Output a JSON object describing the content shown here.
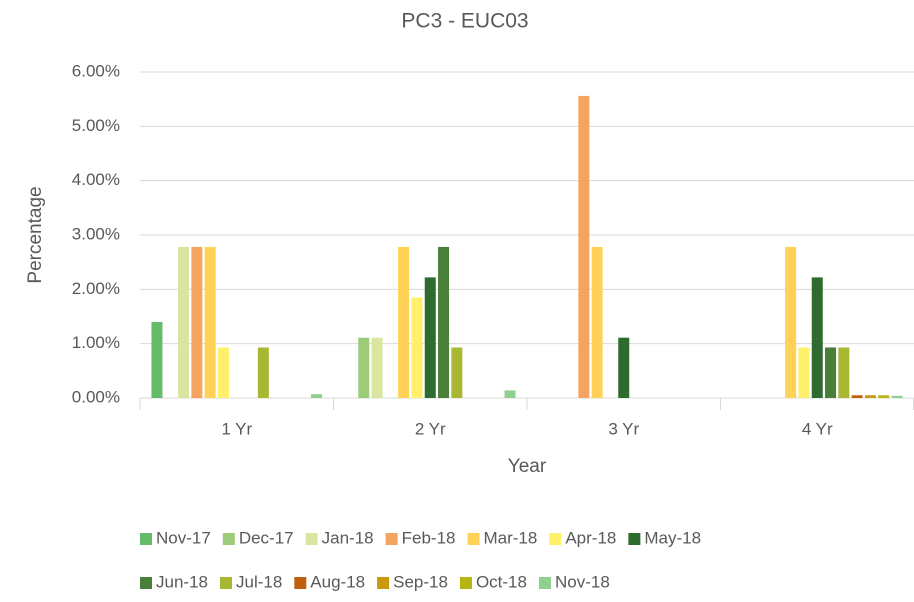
{
  "chart_data": {
    "type": "bar",
    "title": "PC3 - EUC03",
    "x_label": "Year",
    "y_label": "Percentage",
    "categories": [
      "1 Yr",
      "2 Yr",
      "3 Yr",
      "4 Yr"
    ],
    "ylim": [
      0,
      6
    ],
    "yticks": [
      {
        "value": 0,
        "label": "0.00%"
      },
      {
        "value": 1,
        "label": "1.00%"
      },
      {
        "value": 2,
        "label": "2.00%"
      },
      {
        "value": 3,
        "label": "3.00%"
      },
      {
        "value": 4,
        "label": "4.00%"
      },
      {
        "value": 5,
        "label": "5.00%"
      },
      {
        "value": 6,
        "label": "6.00%"
      }
    ],
    "grid": true,
    "legend": "bottom",
    "series": [
      {
        "name": "Nov-17",
        "color": "#66bb6a",
        "values": [
          1.4,
          0,
          0,
          0
        ]
      },
      {
        "name": "Dec-17",
        "color": "#9ccc78",
        "values": [
          0,
          1.11,
          0,
          0
        ]
      },
      {
        "name": "Jan-18",
        "color": "#d9e6a0",
        "values": [
          2.78,
          1.11,
          0,
          0
        ]
      },
      {
        "name": "Feb-18",
        "color": "#f4a460",
        "values": [
          2.78,
          0,
          5.56,
          0
        ]
      },
      {
        "name": "Mar-18",
        "color": "#ffd257",
        "values": [
          2.78,
          2.78,
          2.78,
          2.78
        ]
      },
      {
        "name": "Apr-18",
        "color": "#fff06b",
        "values": [
          0.93,
          1.85,
          0,
          0.93
        ]
      },
      {
        "name": "May-18",
        "color": "#2e6b2e",
        "values": [
          0,
          2.22,
          1.11,
          2.22
        ]
      },
      {
        "name": "Jun-18",
        "color": "#4a7f3a",
        "values": [
          0,
          2.78,
          0,
          0.93
        ]
      },
      {
        "name": "Jul-18",
        "color": "#a8b832",
        "values": [
          0.93,
          0.93,
          0,
          0.93
        ]
      },
      {
        "name": "Aug-18",
        "color": "#c0600f",
        "values": [
          0,
          0,
          0,
          0.05
        ]
      },
      {
        "name": "Sep-18",
        "color": "#c89a10",
        "values": [
          0,
          0,
          0,
          0.05
        ]
      },
      {
        "name": "Oct-18",
        "color": "#b8b414",
        "values": [
          0,
          0,
          0,
          0.05
        ]
      },
      {
        "name": "Nov-18",
        "color": "#8fd08f",
        "values": [
          0.07,
          0.14,
          0,
          0.04
        ]
      }
    ]
  }
}
